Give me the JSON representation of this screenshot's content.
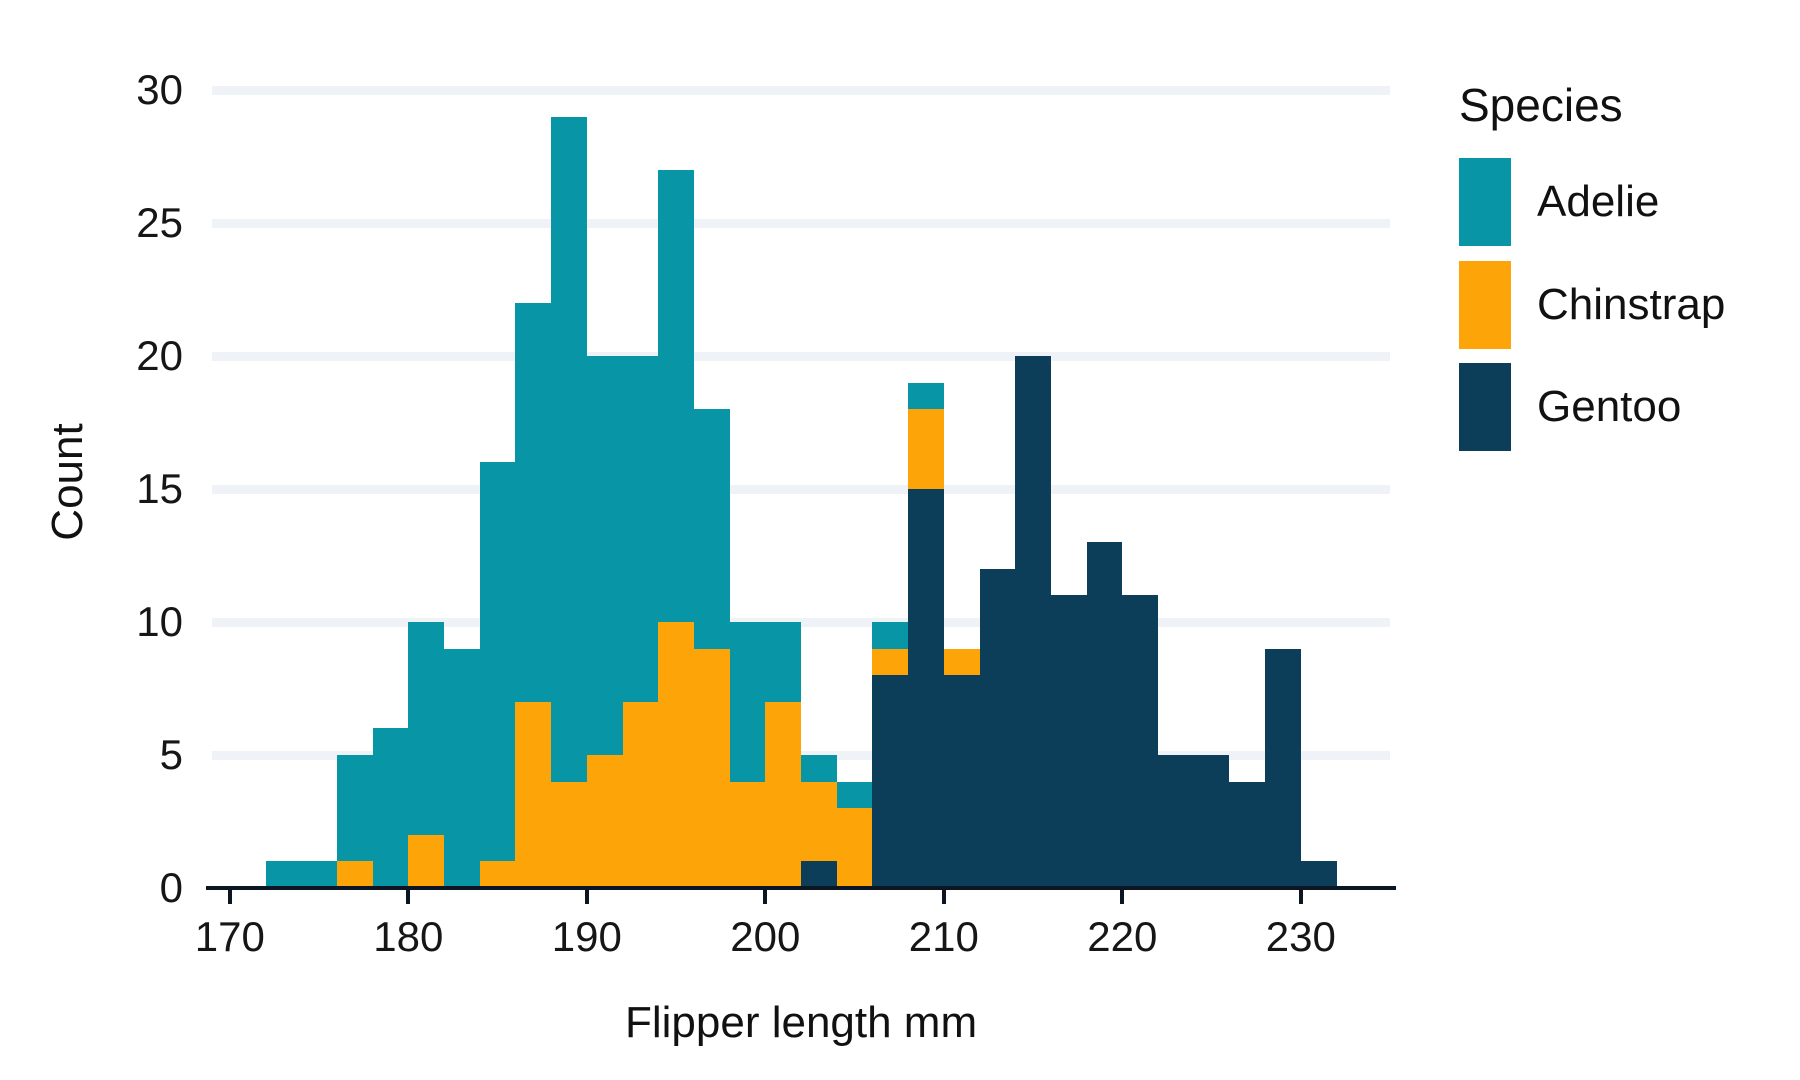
{
  "figure": {
    "background_color": "#ffffff",
    "gridline_color": "#eff2f6",
    "axis_line_color": "#0b1622",
    "text_color": "#111111",
    "x_axis": {
      "title": "Flipper length mm",
      "tick_labels": [
        "170",
        "180",
        "190",
        "200",
        "210",
        "220",
        "230"
      ],
      "tick_values": [
        170,
        180,
        190,
        200,
        210,
        220,
        230
      ]
    },
    "y_axis": {
      "title": "Count",
      "tick_labels": [
        "0",
        "5",
        "10",
        "15",
        "20",
        "25",
        "30"
      ],
      "tick_values": [
        0,
        5,
        10,
        15,
        20,
        25,
        30
      ],
      "gridline_values": [
        5,
        10,
        15,
        20,
        25,
        30
      ]
    },
    "legend": {
      "title": "Species",
      "entries": [
        {
          "label": "Adelie",
          "color": "#0896a6"
        },
        {
          "label": "Chinstrap",
          "color": "#fda408"
        },
        {
          "label": "Gentoo",
          "color": "#0c3d59"
        }
      ]
    }
  },
  "chart_data": {
    "type": "bar",
    "subtype": "stacked-histogram",
    "title": "",
    "xlabel": "Flipper length mm",
    "ylabel": "Count",
    "xlim": [
      169,
      235
    ],
    "ylim": [
      0,
      30.5
    ],
    "grid": "horizontal-major",
    "legend_position": "right",
    "bin_width": 2,
    "stack_order_bottom_to_top": [
      "Gentoo",
      "Chinstrap",
      "Adelie"
    ],
    "series_colors": {
      "Adelie": "#0896a6",
      "Chinstrap": "#fda408",
      "Gentoo": "#0c3d59"
    },
    "bins": [
      {
        "x0": 172,
        "x1": 174,
        "Gentoo": 0,
        "Chinstrap": 0,
        "Adelie": 1
      },
      {
        "x0": 174,
        "x1": 176,
        "Gentoo": 0,
        "Chinstrap": 0,
        "Adelie": 1
      },
      {
        "x0": 176,
        "x1": 178,
        "Gentoo": 0,
        "Chinstrap": 1,
        "Adelie": 4
      },
      {
        "x0": 178,
        "x1": 180,
        "Gentoo": 0,
        "Chinstrap": 0,
        "Adelie": 6
      },
      {
        "x0": 180,
        "x1": 182,
        "Gentoo": 0,
        "Chinstrap": 2,
        "Adelie": 8
      },
      {
        "x0": 182,
        "x1": 184,
        "Gentoo": 0,
        "Chinstrap": 0,
        "Adelie": 9
      },
      {
        "x0": 184,
        "x1": 186,
        "Gentoo": 0,
        "Chinstrap": 1,
        "Adelie": 15
      },
      {
        "x0": 186,
        "x1": 188,
        "Gentoo": 0,
        "Chinstrap": 7,
        "Adelie": 15
      },
      {
        "x0": 188,
        "x1": 190,
        "Gentoo": 0,
        "Chinstrap": 4,
        "Adelie": 25
      },
      {
        "x0": 190,
        "x1": 192,
        "Gentoo": 0,
        "Chinstrap": 5,
        "Adelie": 15
      },
      {
        "x0": 192,
        "x1": 194,
        "Gentoo": 0,
        "Chinstrap": 7,
        "Adelie": 13
      },
      {
        "x0": 194,
        "x1": 196,
        "Gentoo": 0,
        "Chinstrap": 10,
        "Adelie": 17
      },
      {
        "x0": 196,
        "x1": 198,
        "Gentoo": 0,
        "Chinstrap": 9,
        "Adelie": 9
      },
      {
        "x0": 198,
        "x1": 200,
        "Gentoo": 0,
        "Chinstrap": 4,
        "Adelie": 6
      },
      {
        "x0": 200,
        "x1": 202,
        "Gentoo": 0,
        "Chinstrap": 7,
        "Adelie": 3
      },
      {
        "x0": 202,
        "x1": 204,
        "Gentoo": 1,
        "Chinstrap": 3,
        "Adelie": 1
      },
      {
        "x0": 204,
        "x1": 206,
        "Gentoo": 0,
        "Chinstrap": 3,
        "Adelie": 1
      },
      {
        "x0": 206,
        "x1": 208,
        "Gentoo": 8,
        "Chinstrap": 1,
        "Adelie": 1
      },
      {
        "x0": 208,
        "x1": 210,
        "Gentoo": 15,
        "Chinstrap": 3,
        "Adelie": 1
      },
      {
        "x0": 210,
        "x1": 212,
        "Gentoo": 8,
        "Chinstrap": 1,
        "Adelie": 0
      },
      {
        "x0": 212,
        "x1": 214,
        "Gentoo": 12,
        "Chinstrap": 0,
        "Adelie": 0
      },
      {
        "x0": 214,
        "x1": 216,
        "Gentoo": 20,
        "Chinstrap": 0,
        "Adelie": 0
      },
      {
        "x0": 216,
        "x1": 218,
        "Gentoo": 11,
        "Chinstrap": 0,
        "Adelie": 0
      },
      {
        "x0": 218,
        "x1": 220,
        "Gentoo": 13,
        "Chinstrap": 0,
        "Adelie": 0
      },
      {
        "x0": 220,
        "x1": 222,
        "Gentoo": 11,
        "Chinstrap": 0,
        "Adelie": 0
      },
      {
        "x0": 222,
        "x1": 224,
        "Gentoo": 5,
        "Chinstrap": 0,
        "Adelie": 0
      },
      {
        "x0": 224,
        "x1": 226,
        "Gentoo": 5,
        "Chinstrap": 0,
        "Adelie": 0
      },
      {
        "x0": 226,
        "x1": 228,
        "Gentoo": 4,
        "Chinstrap": 0,
        "Adelie": 0
      },
      {
        "x0": 228,
        "x1": 230,
        "Gentoo": 9,
        "Chinstrap": 0,
        "Adelie": 0
      },
      {
        "x0": 230,
        "x1": 232,
        "Gentoo": 1,
        "Chinstrap": 0,
        "Adelie": 0
      }
    ]
  }
}
